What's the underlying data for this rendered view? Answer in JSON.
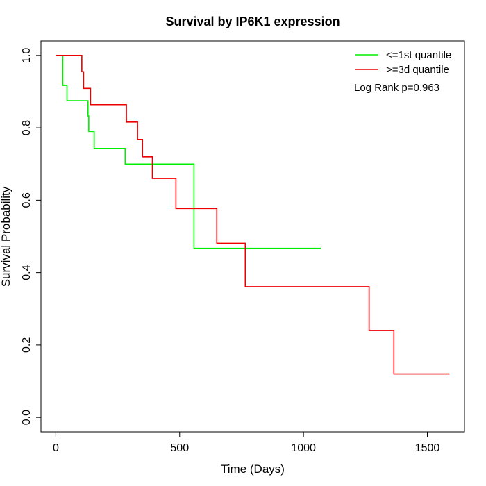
{
  "chart_data": {
    "type": "line",
    "title": "Survival by IP6K1 expression",
    "xlabel": "Time (Days)",
    "ylabel": "Survival Probability",
    "xlim": [
      -60,
      1650
    ],
    "ylim": [
      -0.04,
      1.04
    ],
    "x_ticks": [
      0,
      500,
      1000,
      1500
    ],
    "y_ticks": [
      0.0,
      0.2,
      0.4,
      0.6,
      0.8,
      1.0
    ],
    "x_tick_labels": [
      "0",
      "500",
      "1000",
      "1500"
    ],
    "y_tick_labels": [
      "0.0",
      "0.2",
      "0.4",
      "0.6",
      "0.8",
      "1.0"
    ],
    "grid": false,
    "legend_position": "top-right",
    "annotation": "Log Rank p=0.963",
    "series": [
      {
        "name": "<=1st quantile",
        "color": "#00ee00",
        "step": "post",
        "x": [
          0,
          25,
          28,
          45,
          130,
          133,
          138,
          155,
          280,
          558,
          565,
          1070
        ],
        "y": [
          1.0,
          1.0,
          0.917,
          0.875,
          0.833,
          0.79,
          0.79,
          0.743,
          0.7,
          0.467,
          0.467,
          0.467
        ]
      },
      {
        "name": ">=3d quantile",
        "color": "#ee0000",
        "step": "post",
        "x": [
          0,
          105,
          112,
          140,
          285,
          330,
          350,
          390,
          485,
          650,
          765,
          1265,
          1365,
          1590
        ],
        "y": [
          1.0,
          0.955,
          0.909,
          0.864,
          0.816,
          0.768,
          0.72,
          0.66,
          0.577,
          0.481,
          0.361,
          0.24,
          0.12,
          0.12
        ]
      }
    ]
  }
}
